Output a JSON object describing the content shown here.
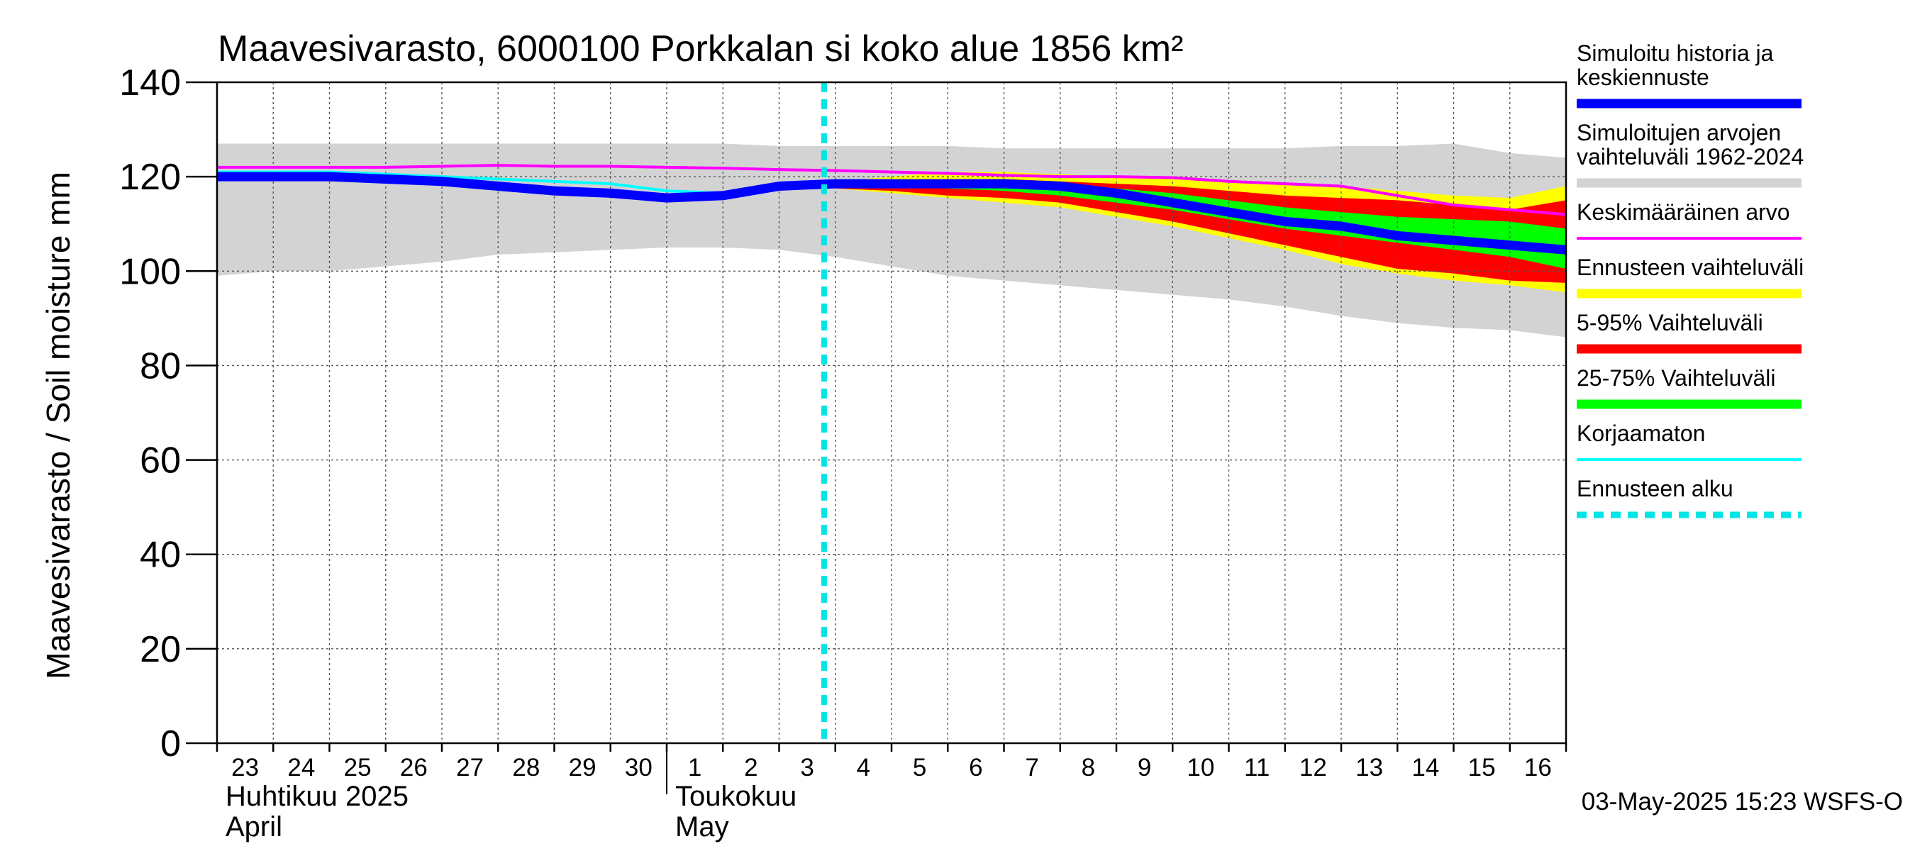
{
  "chart_data": {
    "type": "area",
    "title": "Maavesivarasto, 6000100 Porkkalan si koko alue 1856 km²",
    "ylabel": "Maavesivarasto / Soil moisture   mm",
    "ylim": [
      0,
      140
    ],
    "yticks": [
      0,
      20,
      40,
      60,
      80,
      100,
      120,
      140
    ],
    "grid": true,
    "day_labels": [
      "23",
      "24",
      "25",
      "26",
      "27",
      "28",
      "29",
      "30",
      "1",
      "2",
      "3",
      "4",
      "5",
      "6",
      "7",
      "8",
      "9",
      "10",
      "11",
      "12",
      "13",
      "14",
      "15",
      "16"
    ],
    "month_labels": [
      {
        "fi": "Huhtikuu  2025",
        "en": "April",
        "start_day_index": 0
      },
      {
        "fi": "Toukokuu",
        "en": "May",
        "start_day_index": 8
      }
    ],
    "x_range_days": [
      0,
      24
    ],
    "forecast_start_day": 10.8,
    "footer": "03-May-2025 15:23 WSFS-O",
    "legend_position": "right",
    "legend": [
      {
        "label": "Simuloitu historia ja keskiennuste",
        "color": "#0000ff",
        "style": "thick"
      },
      {
        "label": "Simuloitujen arvojen vaihteluväli 1962-2024",
        "color": "#d3d3d3",
        "style": "thick"
      },
      {
        "label": "Keskimääräinen arvo",
        "color": "#ff00ff",
        "style": "thin"
      },
      {
        "label": "Ennusteen vaihteluväli",
        "color": "#ffff00",
        "style": "thick"
      },
      {
        "label": "5-95% Vaihteluväli",
        "color": "#ff0000",
        "style": "thick"
      },
      {
        "label": "25-75% Vaihteluväli",
        "color": "#00ff00",
        "style": "thick"
      },
      {
        "label": "Korjaamaton",
        "color": "#00ffff",
        "style": "thin"
      },
      {
        "label": "Ennusteen alku",
        "color": "#00e5e5",
        "style": "dashed"
      }
    ],
    "series": {
      "historical_range": {
        "x": [
          0,
          1,
          2,
          3,
          4,
          5,
          6,
          7,
          8,
          9,
          10,
          11,
          12,
          13,
          14,
          15,
          16,
          17,
          18,
          19,
          20,
          21,
          22,
          23,
          24
        ],
        "low": [
          99,
          100,
          100,
          101,
          102,
          103.5,
          104,
          104.5,
          105,
          105,
          104.5,
          103,
          101,
          99,
          98,
          97,
          96,
          95,
          94,
          92.5,
          90.5,
          89,
          88,
          87.5,
          86
        ],
        "high": [
          127,
          127,
          127,
          127,
          127,
          127,
          127,
          127,
          127,
          127,
          126.5,
          126.5,
          126.5,
          126.5,
          126,
          126,
          126,
          126,
          126,
          126,
          126.5,
          126.5,
          127,
          125,
          124
        ]
      },
      "forecast_range": {
        "x": [
          10.8,
          11,
          12,
          13,
          14,
          15,
          16,
          17,
          18,
          19,
          20,
          21,
          22,
          23,
          24
        ],
        "low": [
          118,
          117.5,
          116.5,
          115.5,
          114.5,
          113.5,
          111.5,
          109.5,
          107,
          104.5,
          101.5,
          99.5,
          98,
          97,
          95.5
        ],
        "high": [
          118,
          119,
          120,
          121,
          121,
          120.5,
          120,
          119.5,
          119,
          118.5,
          118,
          117,
          116,
          115.5,
          118
        ]
      },
      "p5_95": {
        "x": [
          10.8,
          11,
          12,
          13,
          14,
          15,
          16,
          17,
          18,
          19,
          20,
          21,
          22,
          23,
          24
        ],
        "low": [
          118,
          117.5,
          117,
          116,
          115.5,
          114.5,
          112.5,
          110.5,
          108,
          105.5,
          103,
          100.5,
          99.5,
          98,
          97.5
        ],
        "high": [
          118,
          118.5,
          119,
          119.5,
          119.5,
          119,
          118.5,
          118,
          117,
          116,
          115.5,
          115,
          114,
          113,
          115
        ]
      },
      "p25_75": {
        "x": [
          10.8,
          11,
          12,
          13,
          14,
          15,
          16,
          17,
          18,
          19,
          20,
          21,
          22,
          23,
          24
        ],
        "low": [
          118,
          118,
          118,
          117.5,
          117,
          116,
          114.5,
          113,
          111,
          109,
          107.5,
          106,
          104.5,
          103,
          100.5
        ],
        "high": [
          118,
          118.5,
          118.5,
          118.5,
          118.5,
          118,
          117.5,
          116.5,
          115,
          113.5,
          112.5,
          111.5,
          111,
          110.5,
          109
        ]
      },
      "mean_value": {
        "x": [
          0,
          1,
          2,
          3,
          4,
          5,
          6,
          7,
          8,
          9,
          10,
          11,
          12,
          13,
          14,
          15,
          16,
          17,
          18,
          19,
          20,
          21,
          22,
          23,
          24
        ],
        "values": [
          122,
          122,
          122,
          122,
          122.2,
          122.4,
          122.2,
          122.2,
          122,
          121.8,
          121.5,
          121.3,
          121,
          120.7,
          120.3,
          120,
          120,
          119.8,
          119,
          118.5,
          118,
          116,
          114,
          113,
          112
        ]
      },
      "uncorrected": {
        "x": [
          0,
          1,
          2,
          3,
          4,
          5,
          6,
          7,
          8,
          9,
          10,
          11,
          12,
          13,
          14,
          15,
          16,
          17,
          18,
          19,
          20,
          21,
          22,
          23,
          24
        ],
        "values": [
          121,
          121,
          121,
          120.5,
          120,
          119.5,
          119,
          118.5,
          117,
          116.5,
          118,
          118.5,
          119,
          118.5,
          118.5,
          118,
          116.5,
          114.5,
          112.5,
          110.5,
          109,
          107,
          106,
          105.5,
          105
        ]
      },
      "simulated_mean": {
        "x": [
          0,
          1,
          2,
          3,
          4,
          5,
          6,
          7,
          8,
          9,
          10,
          11,
          12,
          13,
          14,
          15,
          16,
          17,
          18,
          19,
          20,
          21,
          22,
          23,
          24
        ],
        "values": [
          120,
          120,
          120,
          119.5,
          119,
          118,
          117,
          116.5,
          115.5,
          116,
          118,
          118.5,
          118.5,
          118.5,
          118.5,
          118,
          116.5,
          114.5,
          112.5,
          110.5,
          109.5,
          107.5,
          106.5,
          105.5,
          104.5
        ]
      }
    }
  }
}
